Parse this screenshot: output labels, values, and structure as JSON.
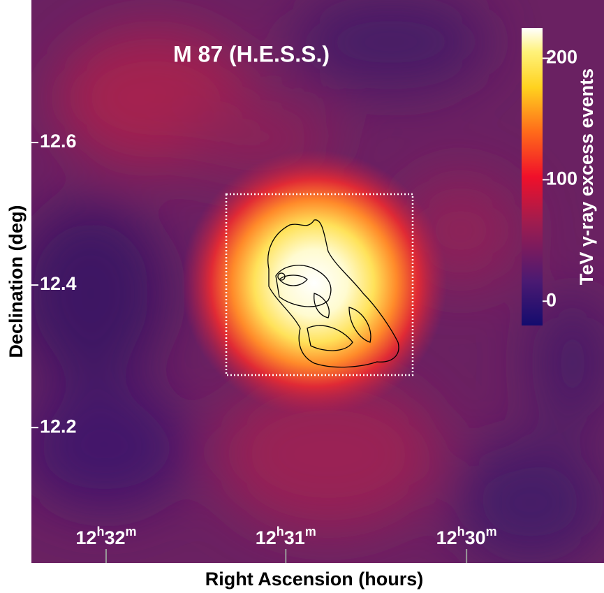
{
  "chart_data": {
    "type": "skymap",
    "title": "M 87 (H.E.S.S.)",
    "x_label": "Right Ascension (hours)",
    "y_label": "Declination (deg)",
    "xlim": [
      12.5402,
      12.4873
    ],
    "xticks": [
      {
        "value": 12.5333,
        "label": [
          "12",
          "h",
          "32",
          "m"
        ]
      },
      {
        "value": 12.5167,
        "label": [
          "12",
          "h",
          "31",
          "m"
        ]
      },
      {
        "value": 12.5,
        "label": [
          "12",
          "h",
          "30",
          "m"
        ]
      }
    ],
    "ylim": [
      12.01,
      12.8
    ],
    "yticks": [
      12.2,
      12.4,
      12.6
    ],
    "colorbar": {
      "label": "TeV γ-ray excess events",
      "lim": [
        -20,
        225
      ],
      "ticks": [
        0,
        100,
        200
      ]
    }
  }
}
